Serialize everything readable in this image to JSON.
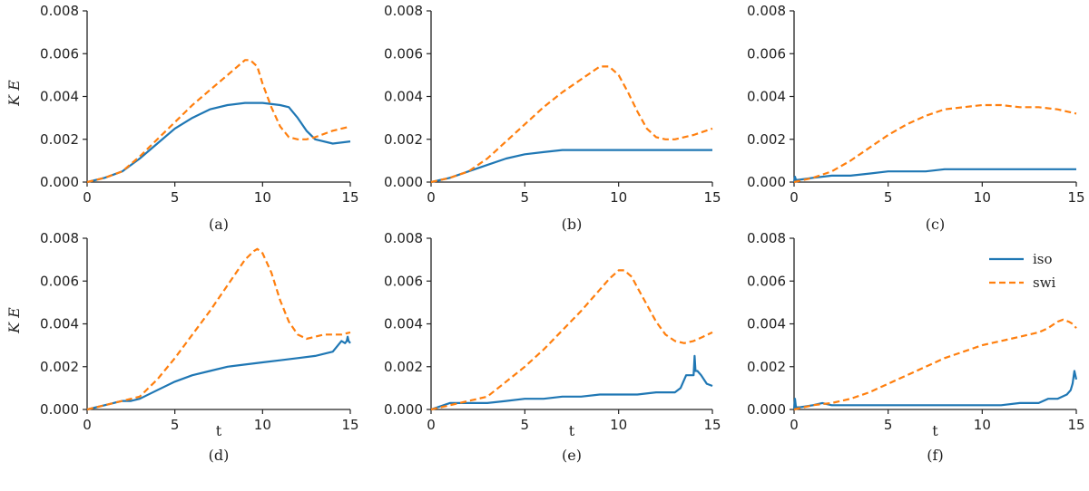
{
  "chart_data": [
    {
      "type": "line",
      "caption": "(a)",
      "xlabel": "",
      "ylabel": "K E",
      "xlim": [
        0,
        15
      ],
      "ylim": [
        0,
        0.008
      ],
      "xticks": [
        "0",
        "5",
        "10",
        "15"
      ],
      "yticks": [
        "0.000",
        "0.002",
        "0.004",
        "0.006",
        "0.008"
      ],
      "series": [
        {
          "name": "iso",
          "style": "solid",
          "x": [
            0,
            1,
            2,
            3,
            4,
            5,
            6,
            7,
            8,
            9,
            10,
            11,
            11.5,
            12,
            12.5,
            13,
            14,
            15
          ],
          "y": [
            0,
            0.0002,
            0.0005,
            0.0011,
            0.0018,
            0.0025,
            0.003,
            0.0034,
            0.0036,
            0.0037,
            0.0037,
            0.0036,
            0.0035,
            0.003,
            0.0024,
            0.002,
            0.0018,
            0.0019
          ]
        },
        {
          "name": "swi",
          "style": "dashed",
          "x": [
            0,
            1,
            2,
            3,
            4,
            5,
            6,
            7,
            8,
            9,
            9.3,
            9.7,
            10,
            10.5,
            11,
            11.5,
            12,
            12.5,
            13,
            14,
            15
          ],
          "y": [
            0,
            0.0002,
            0.0005,
            0.0012,
            0.002,
            0.0028,
            0.0036,
            0.0043,
            0.005,
            0.0057,
            0.0057,
            0.0054,
            0.0046,
            0.0035,
            0.0026,
            0.0021,
            0.002,
            0.002,
            0.0021,
            0.0024,
            0.0026
          ]
        }
      ]
    },
    {
      "type": "line",
      "caption": "(b)",
      "xlabel": "",
      "ylabel": "",
      "xlim": [
        0,
        15
      ],
      "ylim": [
        0,
        0.008
      ],
      "xticks": [
        "0",
        "5",
        "10",
        "15"
      ],
      "yticks": [
        "0.000",
        "0.002",
        "0.004",
        "0.006",
        "0.008"
      ],
      "series": [
        {
          "name": "iso",
          "style": "solid",
          "x": [
            0,
            1,
            2,
            3,
            4,
            5,
            6,
            7,
            8,
            9,
            10,
            12,
            15
          ],
          "y": [
            0,
            0.0002,
            0.0005,
            0.0008,
            0.0011,
            0.0013,
            0.0014,
            0.0015,
            0.0015,
            0.0015,
            0.0015,
            0.0015,
            0.0015
          ]
        },
        {
          "name": "swi",
          "style": "dashed",
          "x": [
            0,
            1,
            2,
            3,
            4,
            5,
            6,
            7,
            8,
            9,
            9.5,
            10,
            10.5,
            11,
            11.5,
            12,
            12.5,
            13,
            14,
            15
          ],
          "y": [
            0,
            0.0002,
            0.0005,
            0.0011,
            0.0019,
            0.0027,
            0.0035,
            0.0042,
            0.0048,
            0.0054,
            0.0054,
            0.005,
            0.0042,
            0.0033,
            0.0025,
            0.0021,
            0.002,
            0.002,
            0.0022,
            0.0025
          ]
        }
      ]
    },
    {
      "type": "line",
      "caption": "(c)",
      "xlabel": "",
      "ylabel": "",
      "xlim": [
        0,
        15
      ],
      "ylim": [
        0,
        0.008
      ],
      "xticks": [
        "0",
        "5",
        "10",
        "15"
      ],
      "yticks": [
        "0.000",
        "0.002",
        "0.004",
        "0.006",
        "0.008"
      ],
      "series": [
        {
          "name": "iso",
          "style": "solid",
          "x": [
            0,
            0.05,
            0.1,
            0.2,
            1,
            2,
            3,
            4,
            5,
            6,
            7,
            8,
            9,
            10,
            12,
            15
          ],
          "y": [
            0,
            0.00025,
            0.0001,
            0.0001,
            0.0002,
            0.0003,
            0.0003,
            0.0004,
            0.0005,
            0.0005,
            0.0005,
            0.0006,
            0.0006,
            0.0006,
            0.0006,
            0.0006
          ]
        },
        {
          "name": "swi",
          "style": "dashed",
          "x": [
            0,
            1,
            2,
            3,
            4,
            5,
            6,
            7,
            8,
            9,
            10,
            11,
            12,
            13,
            14,
            15
          ],
          "y": [
            0,
            0.0002,
            0.0005,
            0.001,
            0.0016,
            0.0022,
            0.0027,
            0.0031,
            0.0034,
            0.0035,
            0.0036,
            0.0036,
            0.0035,
            0.0035,
            0.0034,
            0.0032
          ]
        }
      ]
    },
    {
      "type": "line",
      "caption": "(d)",
      "xlabel": "t",
      "ylabel": "K E",
      "xlim": [
        0,
        15
      ],
      "ylim": [
        0,
        0.008
      ],
      "xticks": [
        "0",
        "5",
        "10",
        "15"
      ],
      "yticks": [
        "0.000",
        "0.002",
        "0.004",
        "0.006",
        "0.008"
      ],
      "series": [
        {
          "name": "iso",
          "style": "solid",
          "x": [
            0,
            1,
            1.5,
            2,
            2.5,
            3,
            4,
            5,
            6,
            7,
            8,
            9,
            10,
            11,
            12,
            13,
            13.5,
            14,
            14.3,
            14.5,
            14.7,
            14.8,
            14.85,
            14.9,
            15
          ],
          "y": [
            0,
            0.0002,
            0.0003,
            0.0004,
            0.0004,
            0.0005,
            0.0009,
            0.0013,
            0.0016,
            0.0018,
            0.002,
            0.0021,
            0.0022,
            0.0023,
            0.0024,
            0.0025,
            0.0026,
            0.0027,
            0.003,
            0.0032,
            0.0031,
            0.0032,
            0.0034,
            0.0032,
            0.0031
          ]
        },
        {
          "name": "swi",
          "style": "dashed",
          "x": [
            0,
            1,
            2,
            3,
            4,
            5,
            6,
            7,
            8,
            9,
            9.5,
            9.7,
            10,
            10.5,
            11,
            11.5,
            12,
            12.5,
            13,
            13.5,
            14,
            14.5,
            15
          ],
          "y": [
            0,
            0.0002,
            0.0004,
            0.0006,
            0.0014,
            0.0024,
            0.0035,
            0.0046,
            0.0058,
            0.007,
            0.0074,
            0.0075,
            0.0073,
            0.0064,
            0.0051,
            0.0041,
            0.0035,
            0.0033,
            0.0034,
            0.0035,
            0.0035,
            0.0035,
            0.0036
          ]
        }
      ]
    },
    {
      "type": "line",
      "caption": "(e)",
      "xlabel": "t",
      "ylabel": "",
      "xlim": [
        0,
        15
      ],
      "ylim": [
        0,
        0.008
      ],
      "xticks": [
        "0",
        "5",
        "10",
        "15"
      ],
      "yticks": [
        "0.000",
        "0.002",
        "0.004",
        "0.006",
        "0.008"
      ],
      "series": [
        {
          "name": "iso",
          "style": "solid",
          "x": [
            0,
            1,
            1.5,
            2,
            3,
            4,
            5,
            6,
            7,
            8,
            9,
            10,
            11,
            12,
            13,
            13.3,
            13.6,
            13.8,
            14,
            14.05,
            14.1,
            14.2,
            14.4,
            14.7,
            15
          ],
          "y": [
            0,
            0.0003,
            0.0003,
            0.0003,
            0.0003,
            0.0004,
            0.0005,
            0.0005,
            0.0006,
            0.0006,
            0.0007,
            0.0007,
            0.0007,
            0.0008,
            0.0008,
            0.001,
            0.0016,
            0.0016,
            0.0016,
            0.0025,
            0.0018,
            0.0018,
            0.0016,
            0.0012,
            0.0011
          ]
        },
        {
          "name": "swi",
          "style": "dashed",
          "x": [
            0,
            1,
            2,
            3,
            4,
            5,
            6,
            7,
            8,
            9,
            9.5,
            10,
            10.3,
            10.7,
            11,
            11.5,
            12,
            12.5,
            13,
            13.5,
            14,
            14.5,
            15
          ],
          "y": [
            0,
            0.0002,
            0.0004,
            0.0006,
            0.0013,
            0.002,
            0.0028,
            0.0037,
            0.0046,
            0.0056,
            0.0061,
            0.0065,
            0.0065,
            0.0062,
            0.0057,
            0.0049,
            0.0041,
            0.0035,
            0.0032,
            0.0031,
            0.0032,
            0.0034,
            0.0036
          ]
        }
      ]
    },
    {
      "type": "line",
      "caption": "(f)",
      "xlabel": "t",
      "ylabel": "",
      "xlim": [
        0,
        15
      ],
      "ylim": [
        0,
        0.008
      ],
      "xticks": [
        "0",
        "5",
        "10",
        "15"
      ],
      "yticks": [
        "0.000",
        "0.002",
        "0.004",
        "0.006",
        "0.008"
      ],
      "series": [
        {
          "name": "iso",
          "style": "solid",
          "x": [
            0,
            0.05,
            0.1,
            0.3,
            1,
            1.5,
            2,
            3,
            4,
            5,
            6,
            7,
            8,
            9,
            10,
            11,
            12,
            13,
            13.5,
            14,
            14.5,
            14.7,
            14.8,
            14.9,
            15
          ],
          "y": [
            0,
            0.0005,
            0.0001,
            0.0001,
            0.0002,
            0.0003,
            0.0002,
            0.0002,
            0.0002,
            0.0002,
            0.0002,
            0.0002,
            0.0002,
            0.0002,
            0.0002,
            0.0002,
            0.0003,
            0.0003,
            0.0005,
            0.0005,
            0.0007,
            0.0009,
            0.0012,
            0.0018,
            0.0014
          ]
        },
        {
          "name": "swi",
          "style": "dashed",
          "x": [
            0,
            1,
            2,
            3,
            4,
            5,
            6,
            7,
            8,
            9,
            10,
            11,
            12,
            13,
            13.5,
            14,
            14.3,
            14.6,
            14.8,
            15
          ],
          "y": [
            0,
            0.0002,
            0.0003,
            0.0005,
            0.0008,
            0.0012,
            0.0016,
            0.002,
            0.0024,
            0.0027,
            0.003,
            0.0032,
            0.0034,
            0.0036,
            0.0038,
            0.0041,
            0.0042,
            0.0041,
            0.004,
            0.0038
          ]
        }
      ]
    }
  ],
  "legend": {
    "placement": "top-right of panel (f)",
    "entries": [
      {
        "label": "iso",
        "style": "solid"
      },
      {
        "label": "swi",
        "style": "dashed"
      }
    ]
  },
  "colors": {
    "iso": "#1f77b4",
    "swi": "#ff7f0e",
    "axis": "#222222"
  }
}
